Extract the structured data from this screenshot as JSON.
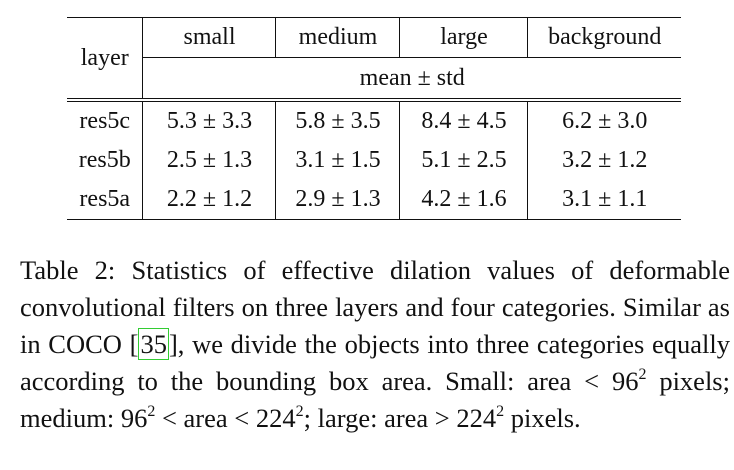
{
  "table": {
    "header": [
      "layer",
      "small",
      "medium",
      "large",
      "background"
    ],
    "subheader": "mean ± std",
    "rows": [
      [
        "res5c",
        "5.3 ± 3.3",
        "5.8 ± 3.5",
        "8.4 ± 4.5",
        "6.2 ± 3.0"
      ],
      [
        "res5b",
        "2.5 ± 1.3",
        "3.1 ± 1.5",
        "5.1 ± 2.5",
        "3.2 ± 1.2"
      ],
      [
        "res5a",
        "2.2 ± 1.2",
        "2.9 ± 1.3",
        "4.2 ± 1.6",
        "3.1 ± 1.1"
      ]
    ]
  },
  "caption": {
    "parts": [
      "Table 2: Statistics of effective dilation values of deformable convolutional filters on three layers and four categories. Similar as in COCO [",
      "35",
      "], we divide the objects into three categories equally according to the bounding box area. Small: area < 96",
      "2",
      " pixels; medium: 96",
      "2",
      " < area < 224",
      "2",
      "; large: area > 224",
      "2",
      " pixels."
    ]
  }
}
